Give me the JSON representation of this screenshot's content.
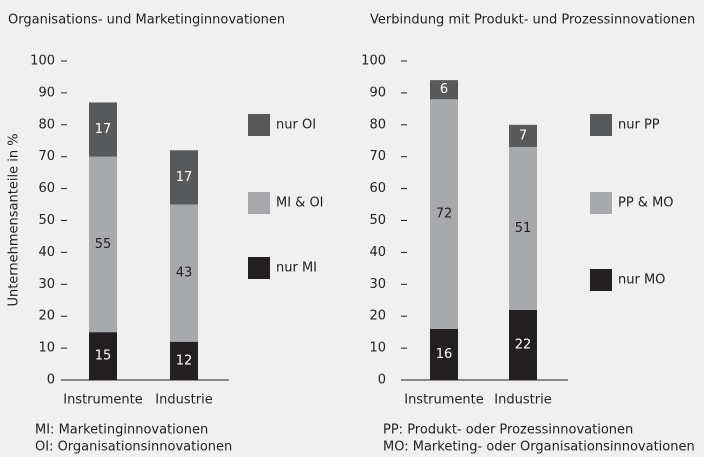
{
  "chart_data": [
    {
      "type": "stacked_bar",
      "title": "Organisations- und Marketinginnovationen",
      "ylabel": "Unternehmensanteile in %",
      "categories": [
        "Instrumente",
        "Industrie"
      ],
      "series": [
        {
          "name": "nur MI",
          "color": "#231f20",
          "values": [
            15,
            12
          ]
        },
        {
          "name": "MI & OI",
          "color": "#a7a9ac",
          "values": [
            55,
            43
          ]
        },
        {
          "name": "nur OI",
          "color": "#58595b",
          "values": [
            17,
            17
          ]
        }
      ],
      "ylim": [
        0,
        100
      ],
      "yticks": [
        0,
        10,
        20,
        30,
        40,
        50,
        60,
        70,
        80,
        90,
        100
      ],
      "notes": [
        "MI: Marketinginnovationen",
        "OI: Organisationsinnovationen"
      ]
    },
    {
      "type": "stacked_bar",
      "title": "Verbindung mit Produkt- und Prozessinnovationen",
      "categories": [
        "Instrumente",
        "Industrie"
      ],
      "series": [
        {
          "name": "nur MO",
          "color": "#231f20",
          "values": [
            16,
            22
          ]
        },
        {
          "name": "PP & MO",
          "color": "#a7a9ac",
          "values": [
            72,
            51
          ]
        },
        {
          "name": "nur PP",
          "color": "#58595b",
          "values": [
            6,
            7
          ]
        }
      ],
      "ylim": [
        0,
        100
      ],
      "yticks": [
        0,
        10,
        20,
        30,
        40,
        50,
        60,
        70,
        80,
        90,
        100
      ],
      "notes": [
        "PP: Produkt- oder Prozessinnovationen",
        "MO: Marketing- oder Organisationsinnovationen"
      ]
    }
  ]
}
